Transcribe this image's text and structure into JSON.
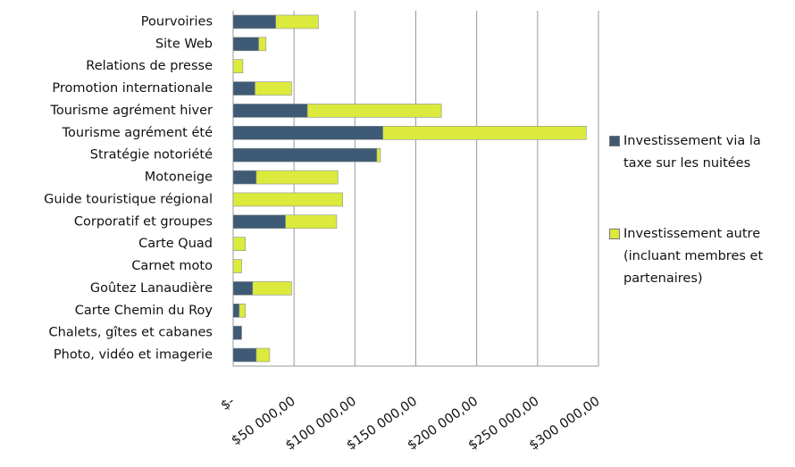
{
  "chart_data": {
    "type": "stacked_barh",
    "categories": [
      "Pourvoiries",
      "Site Web",
      "Relations de presse",
      "Promotion internationale",
      "Tourisme agrément hiver",
      "Tourisme agrément été",
      "Stratégie notoriété",
      "Motoneige",
      "Guide touristique régional",
      "Corporatif et groupes",
      "Carte Quad",
      "Carnet moto",
      "Goûtez Lanaudière",
      "Carte Chemin du Roy",
      "Chalets, gîtes et cabanes",
      "Photo, vidéo et imagerie"
    ],
    "series": [
      {
        "name": "Investissement via la taxe sur les nuitées",
        "color": "#3e5a74",
        "values": [
          35000,
          21000,
          0,
          18000,
          61000,
          123000,
          118000,
          19000,
          0,
          43000,
          0,
          0,
          16000,
          5000,
          7000,
          19000
        ]
      },
      {
        "name": "Investissement autre (incluant membres et partenaires)",
        "color": "#dbea3c",
        "values": [
          35000,
          6000,
          8000,
          30000,
          110000,
          167000,
          3000,
          67000,
          90000,
          42000,
          10000,
          7000,
          32000,
          5000,
          0,
          11000
        ]
      }
    ],
    "xlim": [
      0,
      300000
    ],
    "xticks": [
      {
        "value": 0,
        "label": "$-"
      },
      {
        "value": 50000,
        "label": "$50 000,00"
      },
      {
        "value": 100000,
        "label": "$100 000,00"
      },
      {
        "value": 150000,
        "label": "$150 000,00"
      },
      {
        "value": 200000,
        "label": "$200 000,00"
      },
      {
        "value": 250000,
        "label": "$250 000,00"
      },
      {
        "value": 300000,
        "label": "$300 000,00"
      }
    ],
    "grid": true,
    "legend": "right"
  }
}
